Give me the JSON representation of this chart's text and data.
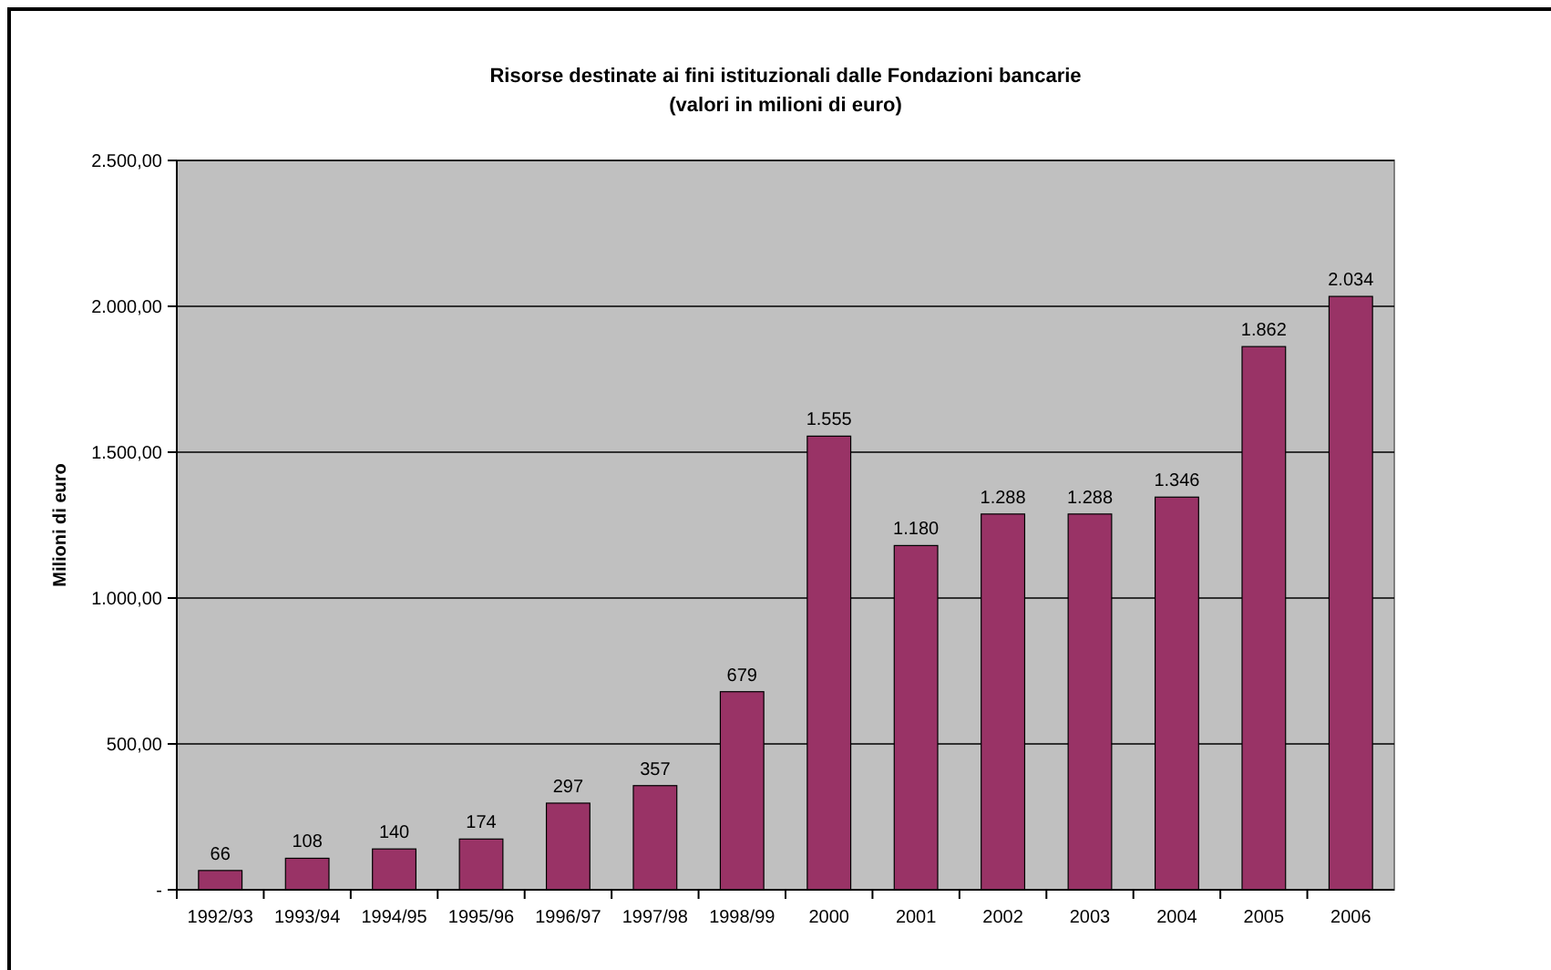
{
  "chart_data": {
    "type": "bar",
    "title": "Risorse destinate ai fini istituzionali dalle Fondazioni bancarie",
    "subtitle": "(valori in milioni di euro)",
    "ylabel": "Milioni di euro",
    "categories": [
      "1992/93",
      "1993/94",
      "1994/95",
      "1995/96",
      "1996/97",
      "1997/98",
      "1998/99",
      "2000",
      "2001",
      "2002",
      "2003",
      "2004",
      "2005",
      "2006"
    ],
    "values": [
      66,
      108,
      140,
      174,
      297,
      357,
      679,
      1555,
      1180,
      1288,
      1288,
      1346,
      1862,
      2034
    ],
    "value_labels": [
      "66",
      "108",
      "140",
      "174",
      "297",
      "357",
      "679",
      "1.555",
      "1.180",
      "1.288",
      "1.288",
      "1.346",
      "1.862",
      "2.034"
    ],
    "color": "#993366",
    "ylim": [
      0,
      2500
    ],
    "yticks": [
      {
        "value": 0,
        "label": "-"
      },
      {
        "value": 500,
        "label": "500,00"
      },
      {
        "value": 1000,
        "label": "1.000,00"
      },
      {
        "value": 1500,
        "label": "1.500,00"
      },
      {
        "value": 2000,
        "label": "2.000,00"
      },
      {
        "value": 2500,
        "label": "2.500,00"
      }
    ],
    "grid": "y"
  }
}
